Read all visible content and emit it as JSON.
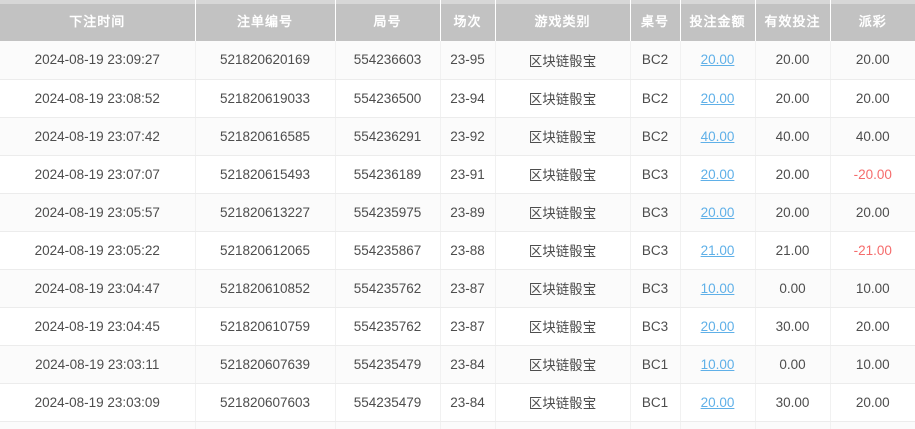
{
  "colors": {
    "header_bg": "#c2c2c2",
    "header_top_edge": "#d7d7d7",
    "header_text": "#ffffff",
    "body_text": "#4d4d4d",
    "link_blue": "#5fb0e8",
    "negative_red": "#f56c6c",
    "row_border": "#ececec"
  },
  "table": {
    "columns": [
      "下注时间",
      "注单编号",
      "局号",
      "场次",
      "游戏类别",
      "桌号",
      "投注金额",
      "有效投注",
      "派彩"
    ],
    "rows": [
      {
        "time": "2024-08-19 23:09:27",
        "order_no": "521820620169",
        "round_no": "554236603",
        "session": "23-95",
        "game_type": "区块链骰宝",
        "table_no": "BC2",
        "bet_amount": "20.00",
        "valid_bet": "20.00",
        "payout": "20.00"
      },
      {
        "time": "2024-08-19 23:08:52",
        "order_no": "521820619033",
        "round_no": "554236500",
        "session": "23-94",
        "game_type": "区块链骰宝",
        "table_no": "BC2",
        "bet_amount": "20.00",
        "valid_bet": "20.00",
        "payout": "20.00"
      },
      {
        "time": "2024-08-19 23:07:42",
        "order_no": "521820616585",
        "round_no": "554236291",
        "session": "23-92",
        "game_type": "区块链骰宝",
        "table_no": "BC2",
        "bet_amount": "40.00",
        "valid_bet": "40.00",
        "payout": "40.00"
      },
      {
        "time": "2024-08-19 23:07:07",
        "order_no": "521820615493",
        "round_no": "554236189",
        "session": "23-91",
        "game_type": "区块链骰宝",
        "table_no": "BC3",
        "bet_amount": "20.00",
        "valid_bet": "20.00",
        "payout": "-20.00"
      },
      {
        "time": "2024-08-19 23:05:57",
        "order_no": "521820613227",
        "round_no": "554235975",
        "session": "23-89",
        "game_type": "区块链骰宝",
        "table_no": "BC3",
        "bet_amount": "20.00",
        "valid_bet": "20.00",
        "payout": "20.00"
      },
      {
        "time": "2024-08-19 23:05:22",
        "order_no": "521820612065",
        "round_no": "554235867",
        "session": "23-88",
        "game_type": "区块链骰宝",
        "table_no": "BC3",
        "bet_amount": "21.00",
        "valid_bet": "21.00",
        "payout": "-21.00"
      },
      {
        "time": "2024-08-19 23:04:47",
        "order_no": "521820610852",
        "round_no": "554235762",
        "session": "23-87",
        "game_type": "区块链骰宝",
        "table_no": "BC3",
        "bet_amount": "10.00",
        "valid_bet": "0.00",
        "payout": "10.00"
      },
      {
        "time": "2024-08-19 23:04:45",
        "order_no": "521820610759",
        "round_no": "554235762",
        "session": "23-87",
        "game_type": "区块链骰宝",
        "table_no": "BC3",
        "bet_amount": "20.00",
        "valid_bet": "30.00",
        "payout": "20.00"
      },
      {
        "time": "2024-08-19 23:03:11",
        "order_no": "521820607639",
        "round_no": "554235479",
        "session": "23-84",
        "game_type": "区块链骰宝",
        "table_no": "BC1",
        "bet_amount": "10.00",
        "valid_bet": "0.00",
        "payout": "10.00"
      },
      {
        "time": "2024-08-19 23:03:09",
        "order_no": "521820607603",
        "round_no": "554235479",
        "session": "23-84",
        "game_type": "区块链骰宝",
        "table_no": "BC1",
        "bet_amount": "20.00",
        "valid_bet": "30.00",
        "payout": "20.00"
      }
    ]
  }
}
